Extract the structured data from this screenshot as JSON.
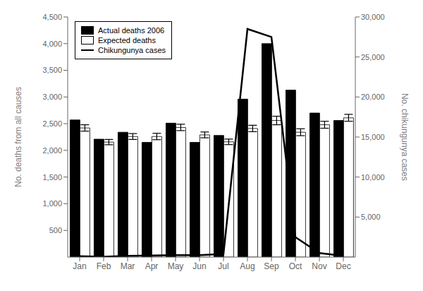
{
  "chart_data": {
    "type": "bar",
    "categories": [
      "Jan",
      "Feb",
      "Mar",
      "Apr",
      "May",
      "Jun",
      "Jul",
      "Aug",
      "Sep",
      "Oct",
      "Nov",
      "Dec"
    ],
    "series": [
      {
        "name": "Actual deaths 2006",
        "type": "bar",
        "color": "#000000",
        "values": [
          2570,
          2210,
          2340,
          2150,
          2510,
          2150,
          2280,
          2960,
          4000,
          3130,
          2700,
          2560
        ]
      },
      {
        "name": "Expected deaths",
        "type": "bar",
        "color": "#ffffff",
        "values": [
          2420,
          2155,
          2260,
          2260,
          2430,
          2290,
          2160,
          2410,
          2560,
          2340,
          2480,
          2610
        ],
        "errors": [
          60,
          50,
          55,
          60,
          60,
          55,
          52,
          60,
          80,
          65,
          65,
          65
        ]
      },
      {
        "name": "Chikungunya cases",
        "type": "line",
        "color": "#000000",
        "axis": "y2",
        "values": [
          100,
          50,
          150,
          200,
          250,
          250,
          400,
          28500,
          27500,
          2500,
          500,
          150
        ]
      }
    ],
    "ylabel": "No. deaths from all causes",
    "y2label": "No. chikungunya cases",
    "ylim": [
      0,
      4500
    ],
    "yticks": [
      500,
      {
        "value": 1000,
        "label": "1,000"
      },
      {
        "value": 1500,
        "label": "1,500"
      },
      {
        "value": 2000,
        "label": "2,000"
      },
      {
        "value": 2500,
        "label": "2,500"
      },
      {
        "value": 3000,
        "label": "3,000"
      },
      {
        "value": 3500,
        "label": "3,500"
      },
      {
        "value": 4000,
        "label": "4,000"
      },
      {
        "value": 4500,
        "label": "4,500"
      }
    ],
    "y2lim": [
      0,
      30000
    ],
    "y2ticks": [
      {
        "value": 5000,
        "label": "5,000"
      },
      {
        "value": 10000,
        "label": "10,000"
      },
      {
        "value": 15000,
        "label": "15,000"
      },
      {
        "value": 20000,
        "label": "20,000"
      },
      {
        "value": 25000,
        "label": "25,000"
      },
      {
        "value": 30000,
        "label": "30,000"
      }
    ],
    "grid": false,
    "legend": "upper left"
  }
}
